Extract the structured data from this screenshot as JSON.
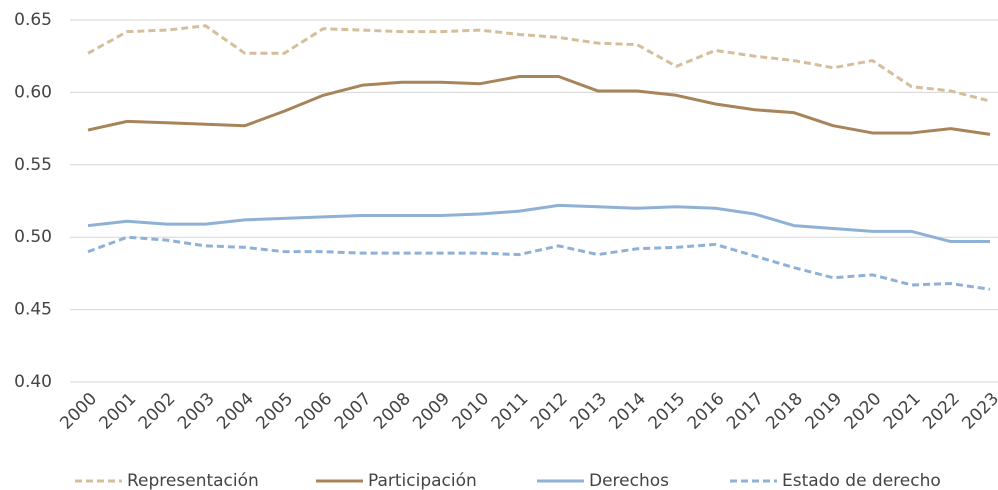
{
  "chart_data": {
    "type": "line",
    "categories": [
      "2000",
      "2001",
      "2002",
      "2003",
      "2004",
      "2005",
      "2006",
      "2007",
      "2008",
      "2009",
      "2010",
      "2011",
      "2012",
      "2013",
      "2014",
      "2015",
      "2016",
      "2017",
      "2018",
      "2019",
      "2020",
      "2021",
      "2022",
      "2023"
    ],
    "series": [
      {
        "name": "Representación",
        "color": "#d5be9c",
        "dashed": true,
        "values": [
          0.627,
          0.642,
          0.643,
          0.646,
          0.627,
          0.627,
          0.644,
          0.643,
          0.642,
          0.642,
          0.643,
          0.64,
          0.638,
          0.634,
          0.633,
          0.618,
          0.629,
          0.625,
          0.622,
          0.617,
          0.622,
          0.604,
          0.601,
          0.594
        ]
      },
      {
        "name": "Participación",
        "color": "#a8845a",
        "dashed": false,
        "values": [
          0.574,
          0.58,
          0.579,
          0.578,
          0.577,
          0.587,
          0.598,
          0.605,
          0.607,
          0.607,
          0.606,
          0.611,
          0.611,
          0.601,
          0.601,
          0.598,
          0.592,
          0.588,
          0.586,
          0.577,
          0.572,
          0.572,
          0.575,
          0.571
        ]
      },
      {
        "name": "Derechos",
        "color": "#8fb1d6",
        "dashed": false,
        "values": [
          0.508,
          0.511,
          0.509,
          0.509,
          0.512,
          0.513,
          0.514,
          0.515,
          0.515,
          0.515,
          0.516,
          0.518,
          0.522,
          0.521,
          0.52,
          0.521,
          0.52,
          0.516,
          0.508,
          0.506,
          0.504,
          0.504,
          0.497,
          0.497
        ]
      },
      {
        "name": "Estado de derecho",
        "color": "#8fb1d6",
        "dashed": true,
        "values": [
          0.49,
          0.5,
          0.498,
          0.494,
          0.493,
          0.49,
          0.49,
          0.489,
          0.489,
          0.489,
          0.489,
          0.488,
          0.494,
          0.488,
          0.492,
          0.493,
          0.495,
          0.487,
          0.479,
          0.472,
          0.474,
          0.467,
          0.468,
          0.464
        ]
      }
    ],
    "ylim": [
      0.4,
      0.65
    ],
    "yticks": [
      {
        "value": 0.4,
        "label": "0.40"
      },
      0.45,
      {
        "value": 0.5,
        "label": "0.50"
      },
      0.55,
      {
        "value": 0.6,
        "label": "0.60"
      },
      0.65
    ],
    "grid": true,
    "legend": "bottom"
  }
}
